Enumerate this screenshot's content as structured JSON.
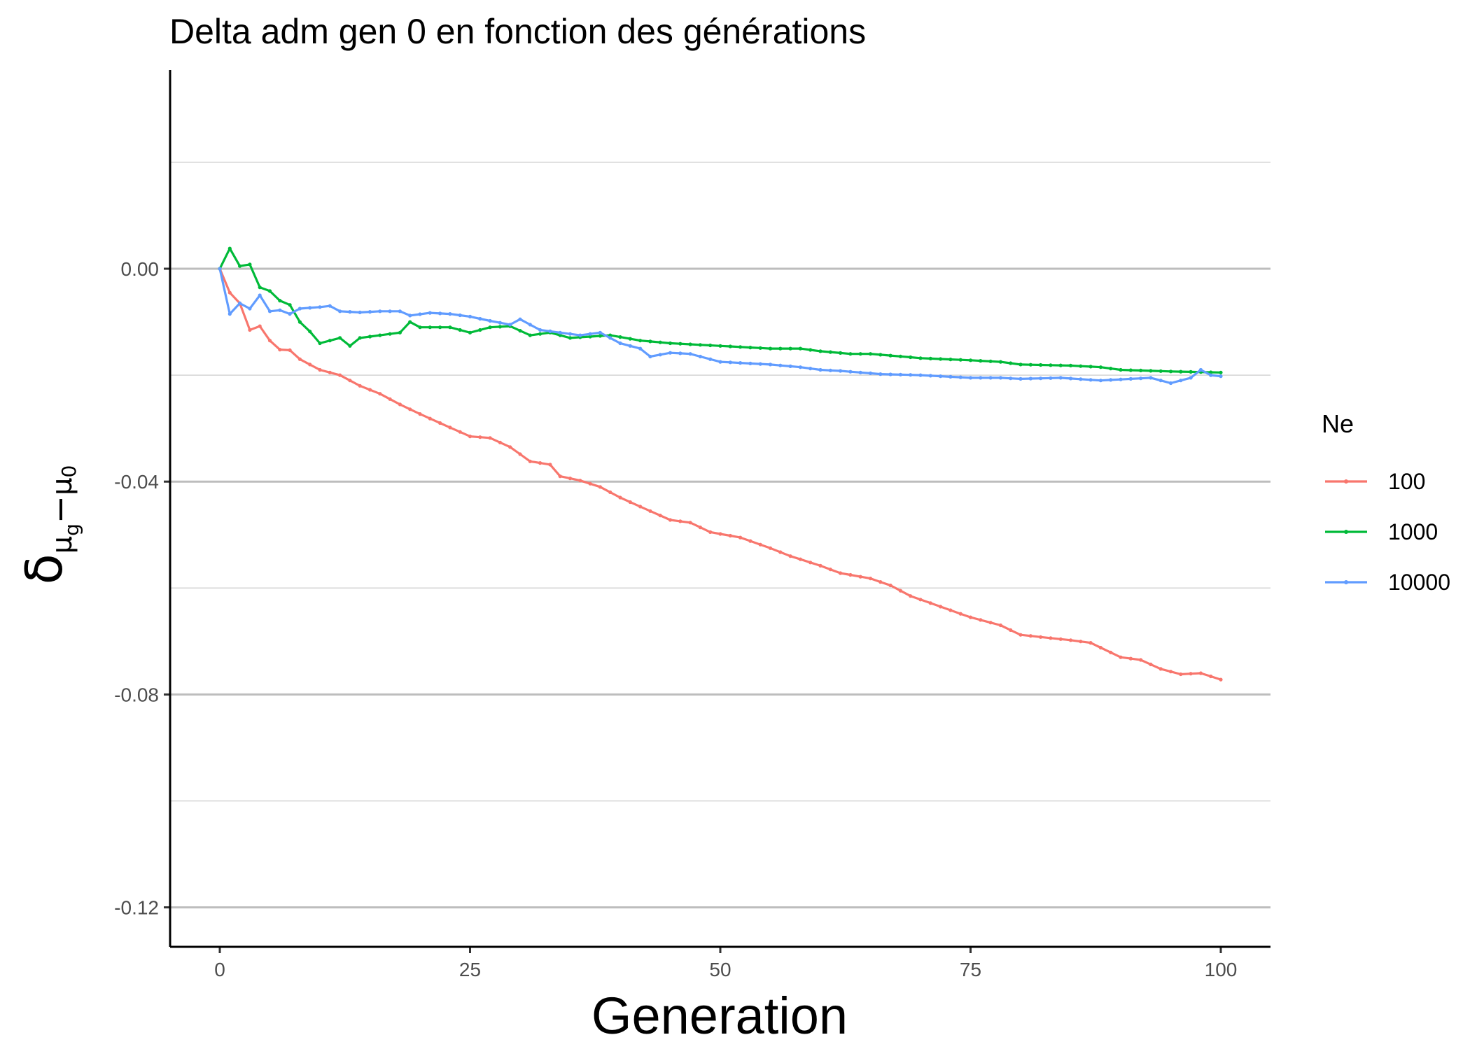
{
  "chart_data": {
    "type": "line",
    "title": "Delta adm gen 0 en fonction des générations",
    "xlabel": "Generation",
    "ylabel": {
      "base": "δ",
      "sub1": "μ",
      "subsub": "g",
      "minus": "−",
      "sub2": "μ",
      "subsub2": "0"
    },
    "xlim": [
      -5,
      105
    ],
    "ylim": [
      -0.127,
      0.0375
    ],
    "x_ticks": [
      0,
      25,
      50,
      75,
      100
    ],
    "x_tick_labels": [
      "0",
      "25",
      "50",
      "75",
      "100"
    ],
    "y_ticks": [
      0.0,
      -0.04,
      -0.08,
      -0.12
    ],
    "y_tick_labels": [
      "0.00",
      "-0.04",
      "-0.08",
      "-0.12"
    ],
    "y_minor_gridlines": [
      0.02,
      -0.02,
      -0.06,
      -0.1
    ],
    "grid": "horizontal",
    "legend": {
      "title": "Ne",
      "placement": "right"
    },
    "series": [
      {
        "name": "100",
        "color": "#F8766D",
        "anchors": [
          [
            0,
            0.0
          ],
          [
            1,
            -0.0045
          ],
          [
            2,
            -0.0065
          ],
          [
            3,
            -0.0115
          ],
          [
            4,
            -0.0108
          ],
          [
            5,
            -0.0135
          ],
          [
            6,
            -0.0152
          ],
          [
            7,
            -0.0153
          ],
          [
            8,
            -0.017
          ],
          [
            10,
            -0.019
          ],
          [
            12,
            -0.02
          ],
          [
            14,
            -0.022
          ],
          [
            16,
            -0.0235
          ],
          [
            18,
            -0.0255
          ],
          [
            20,
            -0.0273
          ],
          [
            22,
            -0.029
          ],
          [
            25,
            -0.0315
          ],
          [
            27,
            -0.0318
          ],
          [
            29,
            -0.0335
          ],
          [
            31,
            -0.0362
          ],
          [
            33,
            -0.0368
          ],
          [
            34,
            -0.039
          ],
          [
            36,
            -0.0398
          ],
          [
            38,
            -0.041
          ],
          [
            40,
            -0.043
          ],
          [
            42,
            -0.0447
          ],
          [
            45,
            -0.0472
          ],
          [
            47,
            -0.0477
          ],
          [
            49,
            -0.0495
          ],
          [
            52,
            -0.0505
          ],
          [
            55,
            -0.0525
          ],
          [
            57,
            -0.054
          ],
          [
            60,
            -0.0558
          ],
          [
            62,
            -0.0572
          ],
          [
            65,
            -0.0582
          ],
          [
            67,
            -0.0595
          ],
          [
            69,
            -0.0615
          ],
          [
            72,
            -0.0635
          ],
          [
            75,
            -0.0655
          ],
          [
            78,
            -0.067
          ],
          [
            80,
            -0.0688
          ],
          [
            82,
            -0.0692
          ],
          [
            85,
            -0.0698
          ],
          [
            87,
            -0.0703
          ],
          [
            90,
            -0.073
          ],
          [
            92,
            -0.0735
          ],
          [
            94,
            -0.0752
          ],
          [
            96,
            -0.0762
          ],
          [
            98,
            -0.076
          ],
          [
            100,
            -0.0772
          ]
        ]
      },
      {
        "name": "1000",
        "color": "#00BA38",
        "anchors": [
          [
            0,
            0.0
          ],
          [
            1,
            0.0038
          ],
          [
            2,
            0.0005
          ],
          [
            3,
            0.0008
          ],
          [
            4,
            -0.0035
          ],
          [
            5,
            -0.0042
          ],
          [
            6,
            -0.006
          ],
          [
            7,
            -0.0068
          ],
          [
            8,
            -0.01
          ],
          [
            9,
            -0.0118
          ],
          [
            10,
            -0.014
          ],
          [
            12,
            -0.013
          ],
          [
            13,
            -0.0145
          ],
          [
            14,
            -0.013
          ],
          [
            16,
            -0.0125
          ],
          [
            18,
            -0.012
          ],
          [
            19,
            -0.01
          ],
          [
            20,
            -0.011
          ],
          [
            21,
            -0.011
          ],
          [
            23,
            -0.011
          ],
          [
            25,
            -0.012
          ],
          [
            27,
            -0.011
          ],
          [
            29,
            -0.0108
          ],
          [
            31,
            -0.0125
          ],
          [
            33,
            -0.012
          ],
          [
            35,
            -0.013
          ],
          [
            39,
            -0.0125
          ],
          [
            42,
            -0.0135
          ],
          [
            45,
            -0.014
          ],
          [
            50,
            -0.0145
          ],
          [
            55,
            -0.015
          ],
          [
            58,
            -0.015
          ],
          [
            60,
            -0.0155
          ],
          [
            63,
            -0.016
          ],
          [
            65,
            -0.016
          ],
          [
            70,
            -0.0168
          ],
          [
            75,
            -0.0172
          ],
          [
            78,
            -0.0175
          ],
          [
            80,
            -0.018
          ],
          [
            85,
            -0.0182
          ],
          [
            88,
            -0.0185
          ],
          [
            90,
            -0.019
          ],
          [
            95,
            -0.0193
          ],
          [
            100,
            -0.0195
          ]
        ]
      },
      {
        "name": "10000",
        "color": "#619CFF",
        "anchors": [
          [
            0,
            0.0
          ],
          [
            1,
            -0.0085
          ],
          [
            2,
            -0.0065
          ],
          [
            3,
            -0.0075
          ],
          [
            4,
            -0.005
          ],
          [
            5,
            -0.008
          ],
          [
            6,
            -0.0078
          ],
          [
            7,
            -0.0085
          ],
          [
            8,
            -0.0075
          ],
          [
            10,
            -0.0072
          ],
          [
            11,
            -0.007
          ],
          [
            12,
            -0.008
          ],
          [
            14,
            -0.0082
          ],
          [
            16,
            -0.008
          ],
          [
            18,
            -0.008
          ],
          [
            19,
            -0.0088
          ],
          [
            21,
            -0.0083
          ],
          [
            23,
            -0.0085
          ],
          [
            25,
            -0.009
          ],
          [
            27,
            -0.0098
          ],
          [
            29,
            -0.0105
          ],
          [
            30,
            -0.0095
          ],
          [
            32,
            -0.0115
          ],
          [
            34,
            -0.012
          ],
          [
            36,
            -0.0125
          ],
          [
            38,
            -0.012
          ],
          [
            40,
            -0.014
          ],
          [
            42,
            -0.015
          ],
          [
            43,
            -0.0165
          ],
          [
            45,
            -0.0158
          ],
          [
            47,
            -0.016
          ],
          [
            50,
            -0.0175
          ],
          [
            53,
            -0.0178
          ],
          [
            55,
            -0.018
          ],
          [
            58,
            -0.0185
          ],
          [
            60,
            -0.019
          ],
          [
            62,
            -0.0192
          ],
          [
            64,
            -0.0195
          ],
          [
            66,
            -0.0198
          ],
          [
            70,
            -0.02
          ],
          [
            75,
            -0.0205
          ],
          [
            78,
            -0.0205
          ],
          [
            80,
            -0.0207
          ],
          [
            84,
            -0.0205
          ],
          [
            88,
            -0.021
          ],
          [
            90,
            -0.0208
          ],
          [
            93,
            -0.0205
          ],
          [
            95,
            -0.0215
          ],
          [
            97,
            -0.0205
          ],
          [
            98,
            -0.019
          ],
          [
            99,
            -0.02
          ],
          [
            100,
            -0.0202
          ]
        ]
      }
    ]
  }
}
